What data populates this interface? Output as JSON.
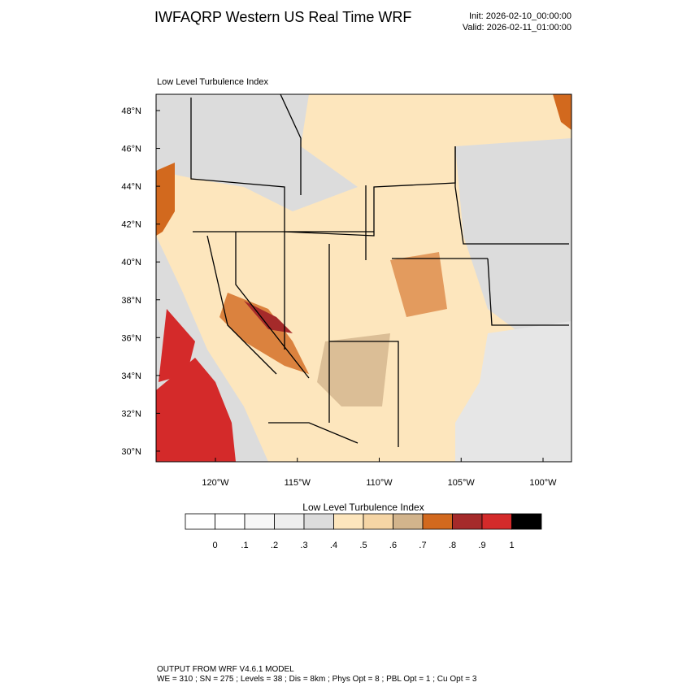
{
  "header": {
    "title": "IWFAQRP Western US Real Time WRF",
    "init": "Init: 2026-02-10_00:00:00",
    "valid": "Valid: 2026-02-11_01:00:00"
  },
  "map": {
    "subtitle": "Low Level Turbulence Index",
    "lat_labels": [
      "48°N",
      "46°N",
      "44°N",
      "42°N",
      "40°N",
      "38°N",
      "36°N",
      "34°N",
      "32°N",
      "30°N"
    ],
    "lon_labels": [
      "120°W",
      "115°W",
      "110°W",
      "105°W",
      "100°W"
    ]
  },
  "colorbar": {
    "title": "Low Level Turbulence Index",
    "colors": [
      "#ffffff",
      "#f7f7f7",
      "#eeeeee",
      "#dcdcdc",
      "#fde6bd",
      "#f5d5a5",
      "#d2b48c",
      "#d2691e",
      "#a52a2a",
      "#d42a2a",
      "#000000"
    ],
    "labels": [
      "0",
      ".1",
      ".2",
      ".3",
      ".4",
      ".5",
      ".6",
      ".7",
      ".8",
      ".9",
      "1"
    ]
  },
  "footer": {
    "line1": "OUTPUT FROM WRF V4.6.1 MODEL",
    "line2": "WE = 310 ; SN = 275 ; Levels = 38 ; Dis = 8km ; Phys Opt = 8 ; PBL Opt = 1 ; Cu Opt = 3"
  }
}
